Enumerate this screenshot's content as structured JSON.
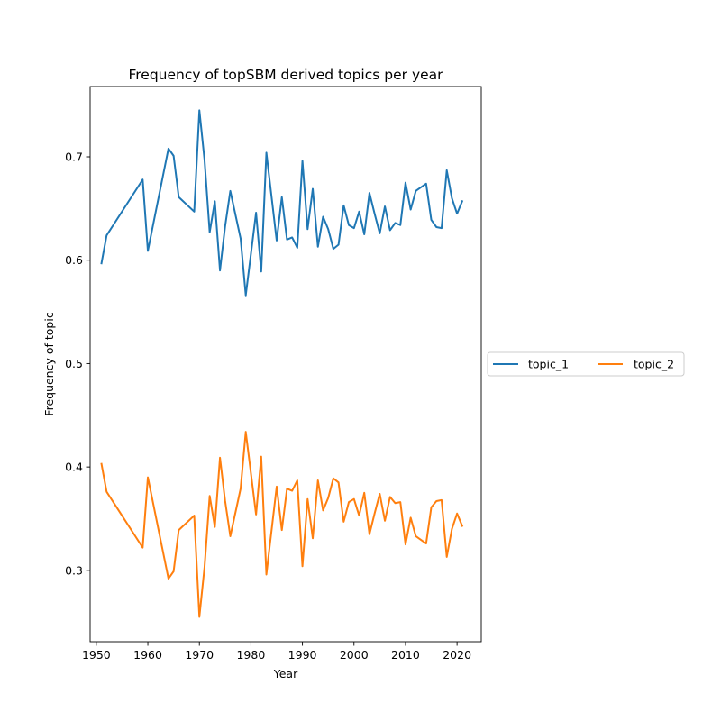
{
  "chart_data": {
    "type": "line",
    "title": "Frequency of topSBM derived topics per year",
    "xlabel": "Year",
    "ylabel": "Frequency of topic",
    "xlim": [
      1948.8,
      2024.7
    ],
    "ylim": [
      0.231,
      0.768
    ],
    "xticks": [
      1950,
      1960,
      1970,
      1980,
      1990,
      2000,
      2010,
      2020
    ],
    "yticks": [
      0.3,
      0.4,
      0.5,
      0.6,
      0.7
    ],
    "yticklabels": [
      "0.3",
      "0.4",
      "0.5",
      "0.6",
      "0.7"
    ],
    "grid": false,
    "legend": "center-right outside plot, 2 columns",
    "x": [
      1951,
      1952,
      1959,
      1960,
      1964,
      1965,
      1966,
      1969,
      1970,
      1971,
      1972,
      1973,
      1974,
      1975,
      1976,
      1978,
      1979,
      1981,
      1982,
      1983,
      1985,
      1986,
      1987,
      1988,
      1989,
      1990,
      1991,
      1992,
      1993,
      1994,
      1995,
      1996,
      1997,
      1998,
      1999,
      2000,
      2001,
      2002,
      2003,
      2004,
      2005,
      2006,
      2007,
      2008,
      2009,
      2010,
      2011,
      2012,
      2014,
      2015,
      2016,
      2017,
      2018,
      2019,
      2020,
      2021
    ],
    "series": [
      {
        "name": "topic_1",
        "color": "#1f77b4",
        "values": [
          0.597,
          0.624,
          0.678,
          0.609,
          0.708,
          0.701,
          0.661,
          0.647,
          0.745,
          0.697,
          0.627,
          0.657,
          0.59,
          0.633,
          0.667,
          0.621,
          0.566,
          0.646,
          0.589,
          0.704,
          0.619,
          0.661,
          0.62,
          0.622,
          0.612,
          0.696,
          0.63,
          0.669,
          0.613,
          0.642,
          0.63,
          0.611,
          0.615,
          0.653,
          0.634,
          0.631,
          0.647,
          0.625,
          0.665,
          0.645,
          0.626,
          0.652,
          0.629,
          0.636,
          0.634,
          0.675,
          0.649,
          0.667,
          0.674,
          0.639,
          0.632,
          0.631,
          0.687,
          0.66,
          0.645,
          0.657
        ]
      },
      {
        "name": "topic_2",
        "color": "#ff7f0e",
        "values": [
          0.403,
          0.376,
          0.322,
          0.39,
          0.292,
          0.299,
          0.339,
          0.353,
          0.255,
          0.303,
          0.372,
          0.342,
          0.409,
          0.367,
          0.333,
          0.379,
          0.434,
          0.354,
          0.41,
          0.296,
          0.381,
          0.339,
          0.379,
          0.377,
          0.387,
          0.304,
          0.369,
          0.331,
          0.387,
          0.358,
          0.37,
          0.389,
          0.385,
          0.347,
          0.366,
          0.369,
          0.353,
          0.375,
          0.335,
          0.355,
          0.374,
          0.348,
          0.371,
          0.365,
          0.366,
          0.325,
          0.351,
          0.333,
          0.326,
          0.361,
          0.367,
          0.368,
          0.313,
          0.34,
          0.355,
          0.343
        ]
      }
    ]
  }
}
